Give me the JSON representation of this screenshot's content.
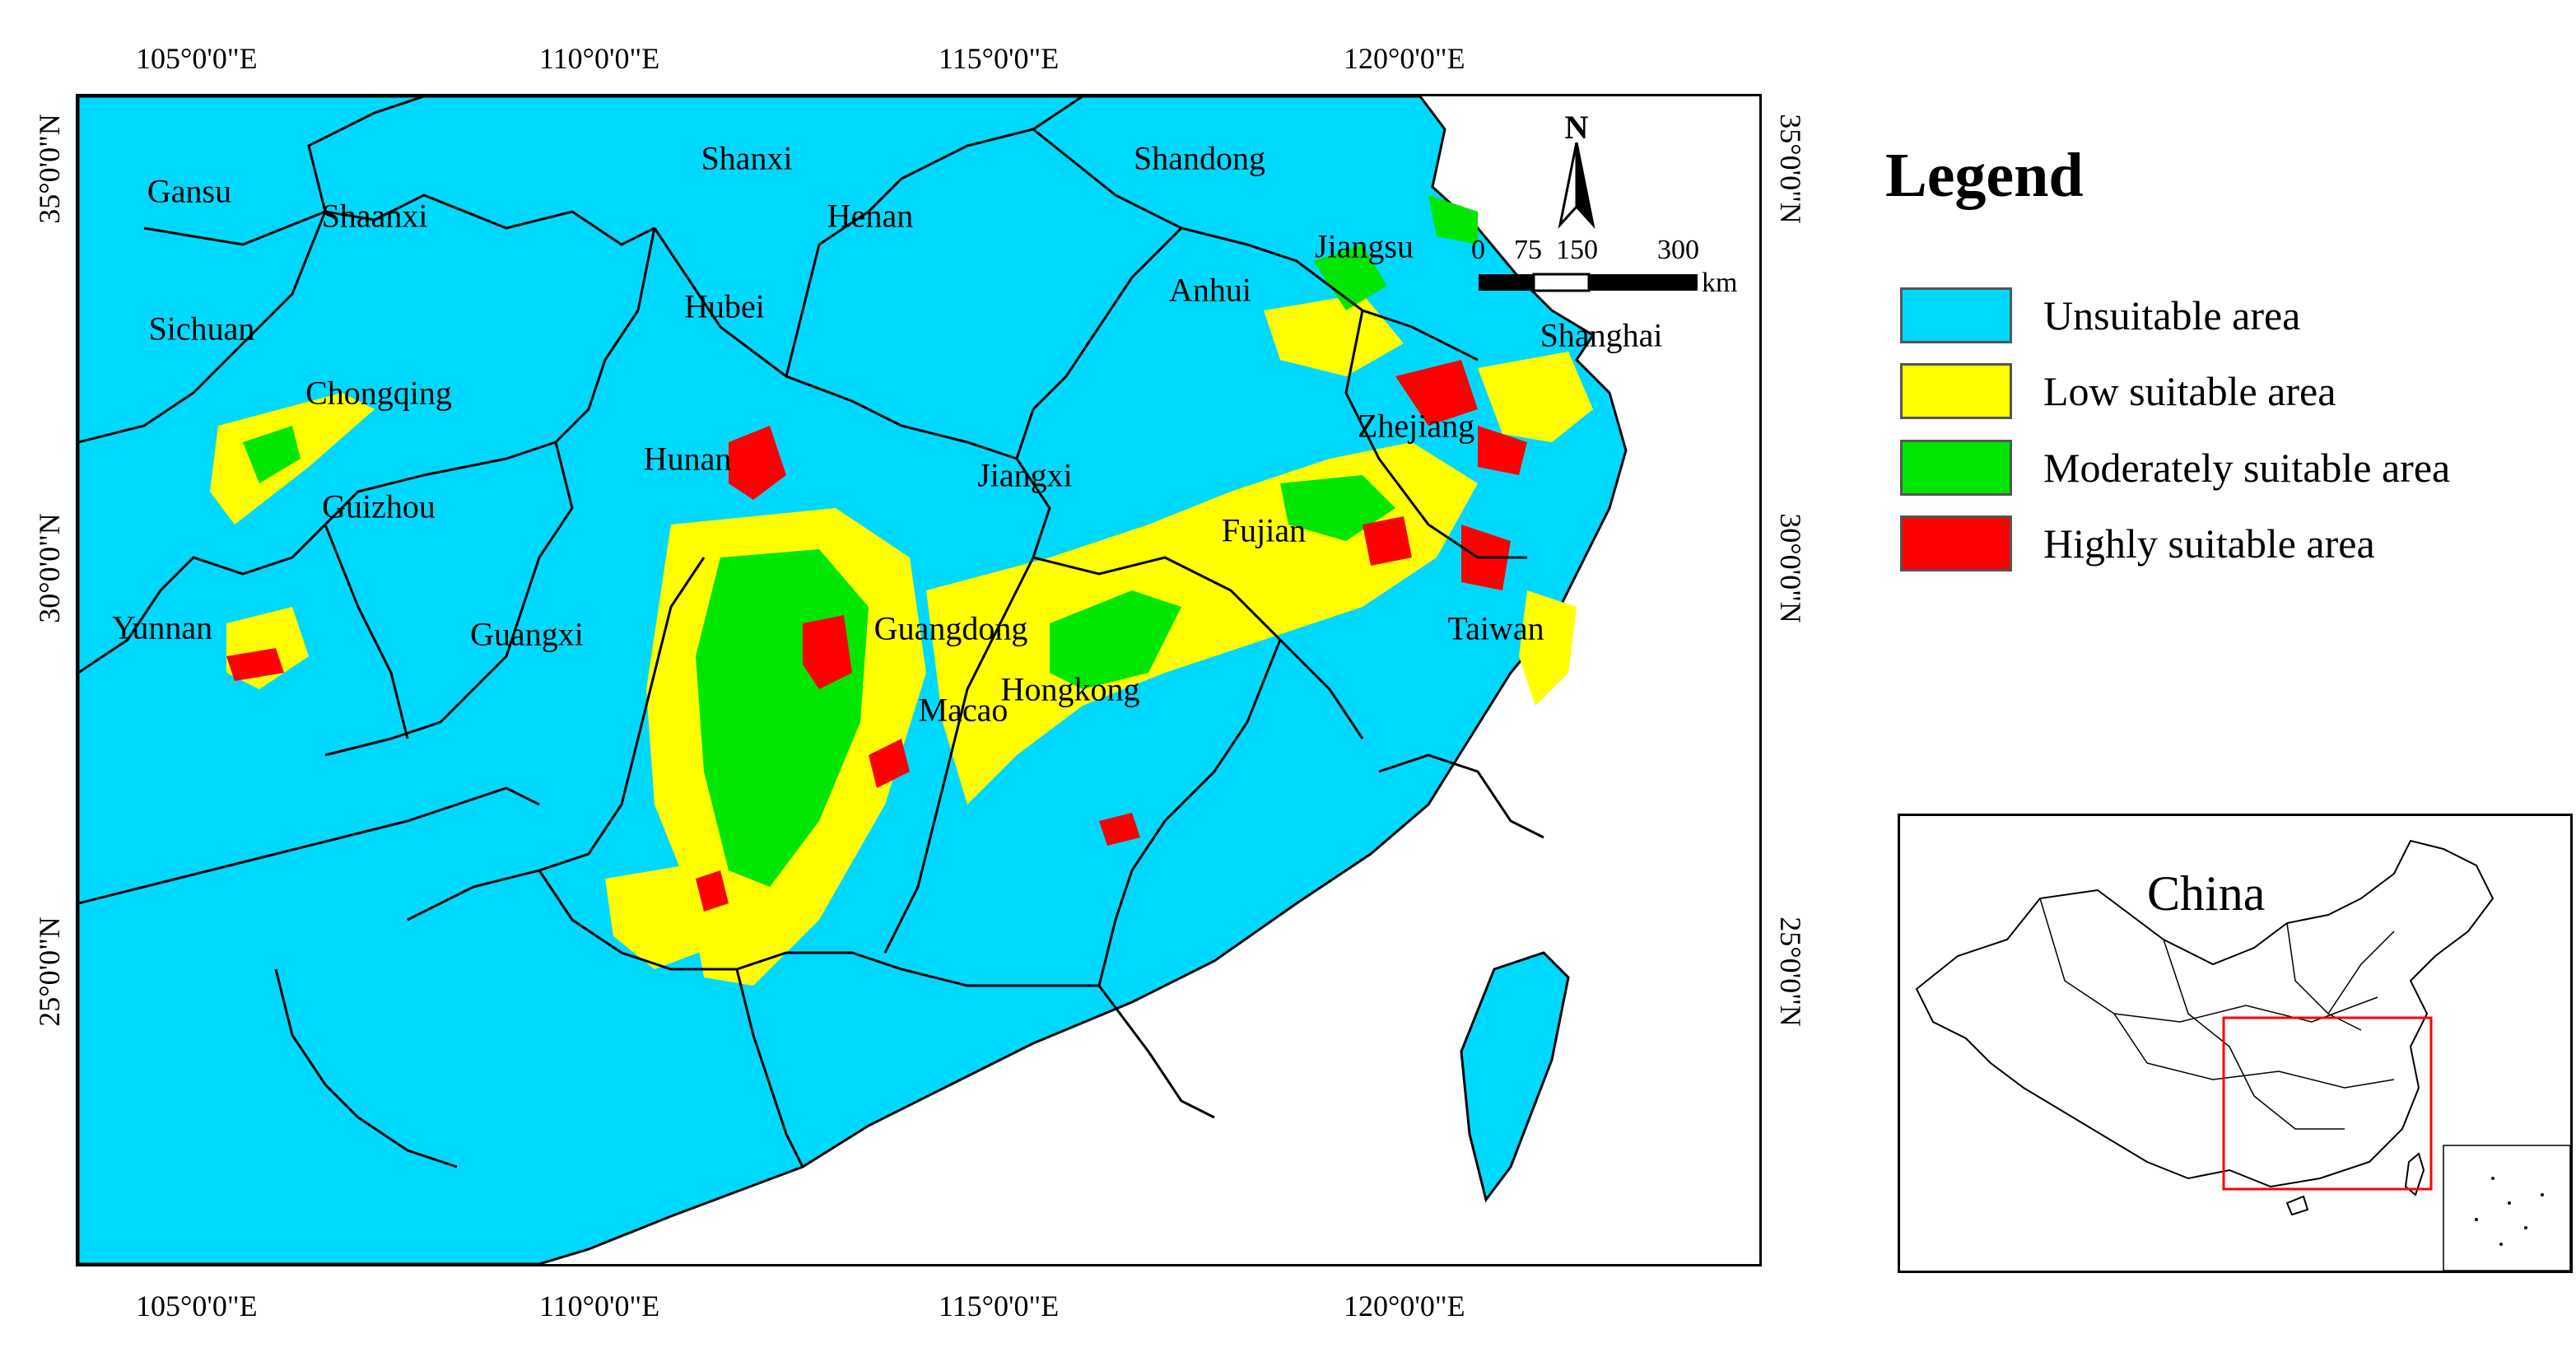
{
  "map": {
    "lon_labels": [
      "105°0'0\"E",
      "110°0'0\"E",
      "115°0'0\"E",
      "120°0'0\"E"
    ],
    "lat_labels": [
      "35°0'0\"N",
      "30°0'0\"N",
      "25°0'0\"N"
    ],
    "provinces": [
      "Gansu",
      "Shaanxi",
      "Shanxi",
      "Henan",
      "Shandong",
      "Jiangsu",
      "Anhui",
      "Hubei",
      "Sichuan",
      "Chongqing",
      "Shanghai",
      "Zhejiang",
      "Hunan",
      "Jiangxi",
      "Guizhou",
      "Fujian",
      "Yunnan",
      "Guangxi",
      "Guangdong",
      "Taiwan",
      "Hongkong",
      "Macao"
    ],
    "colors": {
      "unsuitable": "#00d9ff",
      "low": "#ffff00",
      "moderate": "#00e600",
      "high": "#ff0000",
      "border": "#000000"
    }
  },
  "north_arrow": {
    "label": "N"
  },
  "scale_bar": {
    "ticks": [
      "0",
      "75",
      "150",
      "300"
    ],
    "unit": "km"
  },
  "legend": {
    "title": "Legend",
    "items": [
      {
        "label": "Unsuitable area",
        "color": "#00d9ff"
      },
      {
        "label": "Low suitable area",
        "color": "#ffff00"
      },
      {
        "label": "Moderately suitable area",
        "color": "#00e600"
      },
      {
        "label": "Highly suitable area",
        "color": "#ff0000"
      }
    ]
  },
  "inset": {
    "label": "China"
  }
}
